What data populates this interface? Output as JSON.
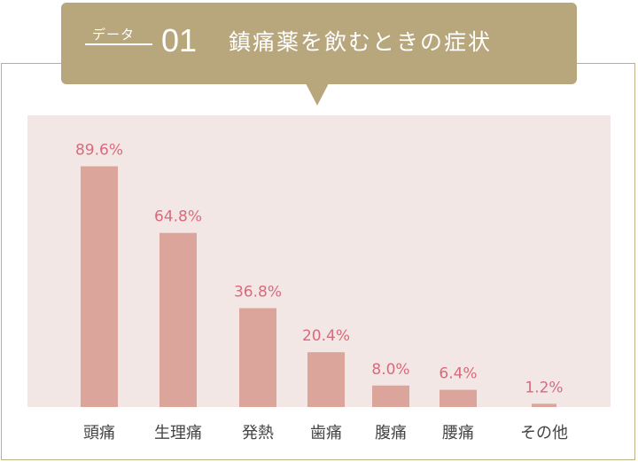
{
  "header": {
    "tag": "データ",
    "number": "01",
    "title": "鎮痛薬を飲むときの症状"
  },
  "colors": {
    "header": "#b8a77c",
    "plot_background": "#f3e7e5",
    "bar": "#dca59c",
    "value_label": "#d96a7d"
  },
  "chart_data": {
    "type": "bar",
    "categories": [
      "頭痛",
      "生理痛",
      "発熱",
      "歯痛",
      "腹痛",
      "腰痛",
      "その他"
    ],
    "values": [
      89.6,
      64.8,
      36.8,
      20.4,
      8.0,
      6.4,
      1.2
    ],
    "value_labels": [
      "89.6%",
      "64.8%",
      "36.8%",
      "20.4%",
      "8.0%",
      "6.4%",
      "1.2%"
    ],
    "title": "",
    "xlabel": "",
    "ylabel": "",
    "ylim": [
      0,
      100
    ],
    "grid": false,
    "legend": "none"
  }
}
